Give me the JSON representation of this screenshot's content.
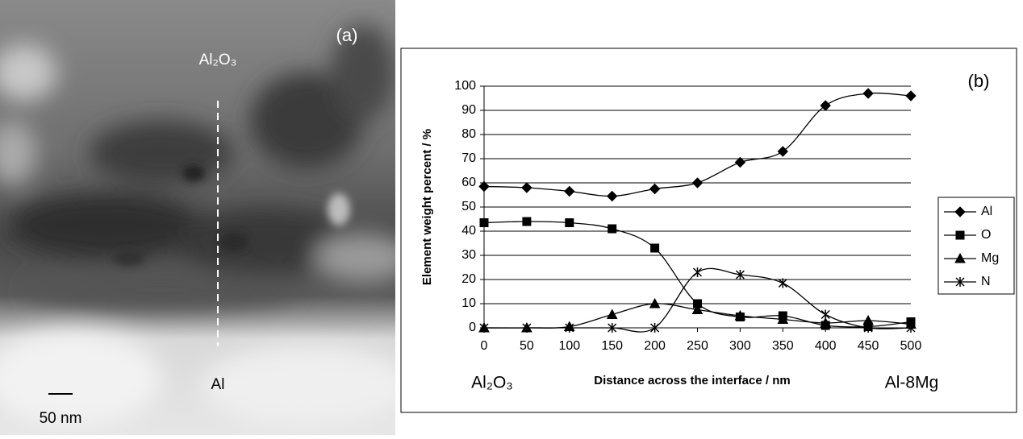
{
  "panel_a": {
    "label": "(a)",
    "top_label": "Al₂O₃",
    "bottom_label": "Al",
    "scale_bar": "50 nm"
  },
  "chart_data": {
    "type": "line",
    "panel_label": "(b)",
    "x_label": "Distance across the interface / nm",
    "y_label": "Element weight percent / %",
    "x_start_label": "Al₂O₃",
    "x_end_label": "Al-8Mg",
    "x": [
      0,
      50,
      100,
      150,
      200,
      250,
      300,
      350,
      400,
      450,
      500
    ],
    "xlim": [
      0,
      500
    ],
    "xticks": [
      0,
      50,
      100,
      150,
      200,
      250,
      300,
      350,
      400,
      450,
      500
    ],
    "ylim": [
      0,
      100
    ],
    "yticks": [
      0,
      10,
      20,
      30,
      40,
      50,
      60,
      70,
      80,
      90,
      100
    ],
    "grid": true,
    "legend": "right",
    "smooth": true,
    "series": [
      {
        "name": "Al",
        "color": "#000000",
        "marker": "diamond",
        "values": [
          58.5,
          58,
          56.5,
          54.5,
          57.5,
          60,
          68.5,
          73,
          92,
          97,
          96
        ]
      },
      {
        "name": "O",
        "color": "#000000",
        "marker": "square",
        "values": [
          43.5,
          44,
          43.5,
          41,
          33,
          10,
          4.5,
          5,
          1,
          0.5,
          2.5
        ]
      },
      {
        "name": "Mg",
        "color": "#000000",
        "marker": "triangle",
        "values": [
          0,
          0,
          0.5,
          5.5,
          10,
          7.5,
          5,
          3.5,
          2,
          3,
          1.5
        ]
      },
      {
        "name": "N",
        "color": "#000000",
        "marker": "star",
        "values": [
          0,
          0,
          0,
          0,
          0,
          23,
          22,
          18.5,
          5.5,
          0,
          0
        ]
      }
    ]
  }
}
